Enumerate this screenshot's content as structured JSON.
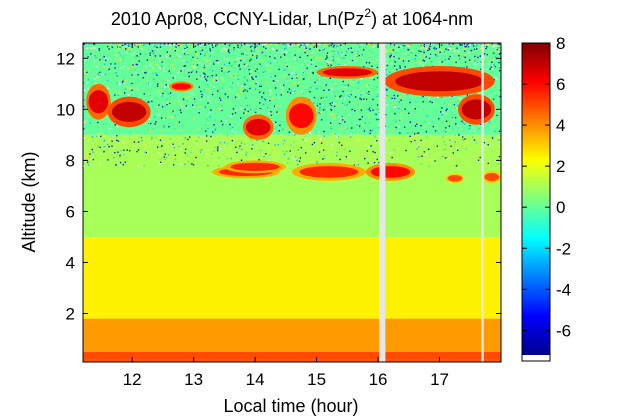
{
  "chart_data": {
    "type": "heatmap",
    "title": "2010 Apr08, CCNY-Lidar, Ln(Pz",
    "title_sup": "2",
    "title_tail": ") at 1064-nm",
    "xlabel": "Local time (hour)",
    "ylabel": "Altitude (km)",
    "xlim": [
      11.2,
      18.0
    ],
    "ylim": [
      0.1,
      12.6
    ],
    "xticks": [
      12,
      13,
      14,
      15,
      16,
      17
    ],
    "yticks": [
      2,
      4,
      6,
      8,
      10,
      12
    ],
    "colorbar": {
      "clim": [
        -7.2,
        8.0
      ],
      "ticks": [
        8,
        6,
        4,
        2,
        0,
        -2,
        -4,
        -6
      ],
      "tick_labels": [
        "8",
        "6",
        "4",
        "2",
        "0",
        "-2",
        "-4",
        "-6"
      ],
      "colormap": "jet"
    },
    "layers": [
      {
        "feature": "surface layer",
        "alt_km": [
          0.2,
          0.5
        ],
        "value": 5.0
      },
      {
        "feature": "boundary layer",
        "alt_km": [
          0.5,
          1.8
        ],
        "value": 3.8
      },
      {
        "feature": "lower troposphere",
        "alt_km": [
          1.8,
          5.0
        ],
        "value": 2.5
      },
      {
        "feature": "mid troposphere",
        "alt_km": [
          5.0,
          9.0
        ],
        "value": 1.0
      },
      {
        "feature": "upper noise region",
        "alt_km": [
          9.0,
          12.6
        ],
        "value": 0.0
      }
    ],
    "clouds": [
      {
        "time": [
          11.25,
          11.65
        ],
        "alt_km": [
          9.6,
          11.0
        ],
        "value": 6.5
      },
      {
        "time": [
          11.6,
          12.3
        ],
        "alt_km": [
          9.3,
          10.5
        ],
        "value": 7.0
      },
      {
        "time": [
          12.6,
          13.0
        ],
        "alt_km": [
          10.7,
          11.1
        ],
        "value": 6.0
      },
      {
        "time": [
          13.3,
          14.4
        ],
        "alt_km": [
          7.3,
          7.8
        ],
        "value": 5.5
      },
      {
        "time": [
          13.5,
          14.5
        ],
        "alt_km": [
          7.5,
          8.0
        ],
        "value": 5.5
      },
      {
        "time": [
          13.8,
          14.3
        ],
        "alt_km": [
          8.8,
          9.8
        ],
        "value": 6.5
      },
      {
        "time": [
          14.5,
          15.0
        ],
        "alt_km": [
          9.0,
          10.5
        ],
        "value": 6.0
      },
      {
        "time": [
          14.6,
          15.8
        ],
        "alt_km": [
          7.2,
          7.9
        ],
        "value": 5.5
      },
      {
        "time": [
          15.0,
          16.0
        ],
        "alt_km": [
          11.2,
          11.7
        ],
        "value": 6.5
      },
      {
        "time": [
          15.8,
          16.6
        ],
        "alt_km": [
          7.2,
          7.9
        ],
        "value": 6.0
      },
      {
        "time": [
          16.1,
          17.9
        ],
        "alt_km": [
          10.5,
          11.7
        ],
        "value": 7.0
      },
      {
        "time": [
          17.3,
          17.9
        ],
        "alt_km": [
          9.4,
          10.6
        ],
        "value": 7.0
      },
      {
        "time": [
          17.1,
          17.4
        ],
        "alt_km": [
          7.1,
          7.5
        ],
        "value": 5.0
      },
      {
        "time": [
          17.7,
          18.0
        ],
        "alt_km": [
          7.1,
          7.6
        ],
        "value": 5.0
      }
    ],
    "data_gaps": [
      {
        "time": [
          16.02,
          16.12
        ]
      },
      {
        "time": [
          17.68,
          17.72
        ]
      }
    ]
  }
}
